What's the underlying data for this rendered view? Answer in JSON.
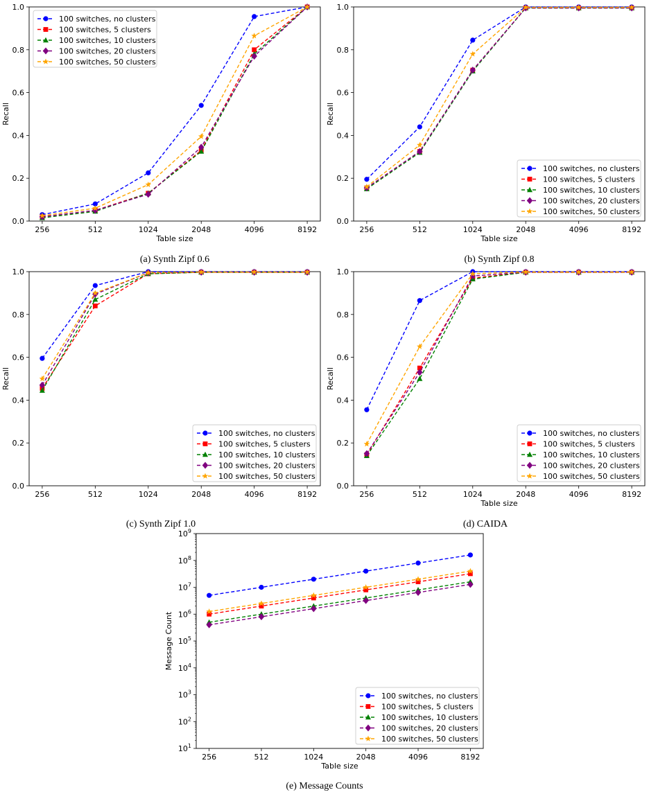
{
  "captions": [
    "(a) Synth Zipf 0.6",
    "(b) Synth Zipf 0.8",
    "(c) Synth Zipf 1.0",
    "(d) CAIDA",
    "(e) Message Counts"
  ],
  "series_styles": [
    {
      "name": "100 switches, no clusters",
      "color": "#0000ff",
      "marker": "circle"
    },
    {
      "name": "100 switches, 5 clusters",
      "color": "#ff0000",
      "marker": "square"
    },
    {
      "name": "100 switches, 10 clusters",
      "color": "#008000",
      "marker": "triangle"
    },
    {
      "name": "100 switches, 20 clusters",
      "color": "#800080",
      "marker": "diamond"
    },
    {
      "name": "100 switches, 50 clusters",
      "color": "#ffa500",
      "marker": "star"
    }
  ],
  "chart_data": [
    {
      "type": "line",
      "caption": "(a) Synth Zipf 0.6",
      "xlabel": "Table size",
      "ylabel": "Recall",
      "x": [
        "256",
        "512",
        "1024",
        "2048",
        "4096",
        "8192"
      ],
      "ylim": [
        0,
        1.0
      ],
      "yticks": [
        "0.0",
        "0.2",
        "0.4",
        "0.6",
        "0.8",
        "1.0"
      ],
      "yscale": "linear",
      "legend": "top-left",
      "series": [
        {
          "name": "100 switches, no clusters",
          "values": [
            0.03,
            0.08,
            0.225,
            0.54,
            0.955,
            1.0
          ]
        },
        {
          "name": "100 switches, 5 clusters",
          "values": [
            0.02,
            0.05,
            0.13,
            0.33,
            0.8,
            1.0
          ]
        },
        {
          "name": "100 switches, 10 clusters",
          "values": [
            0.015,
            0.045,
            0.13,
            0.325,
            0.78,
            1.0
          ]
        },
        {
          "name": "100 switches, 20 clusters",
          "values": [
            0.02,
            0.05,
            0.125,
            0.345,
            0.77,
            1.0
          ]
        },
        {
          "name": "100 switches, 50 clusters",
          "values": [
            0.025,
            0.06,
            0.17,
            0.395,
            0.865,
            1.0
          ]
        }
      ]
    },
    {
      "type": "line",
      "caption": "(b) Synth Zipf 0.8",
      "xlabel": "Table size",
      "ylabel": "Recall",
      "x": [
        "256",
        "512",
        "1024",
        "2048",
        "4096",
        "8192"
      ],
      "ylim": [
        0,
        1.0
      ],
      "yticks": [
        "0.0",
        "0.2",
        "0.4",
        "0.6",
        "0.8",
        "1.0"
      ],
      "yscale": "linear",
      "legend": "bottom-right",
      "series": [
        {
          "name": "100 switches, no clusters",
          "values": [
            0.195,
            0.44,
            0.845,
            1.0,
            1.0,
            1.0
          ]
        },
        {
          "name": "100 switches, 5 clusters",
          "values": [
            0.155,
            0.325,
            0.705,
            0.995,
            0.995,
            0.995
          ]
        },
        {
          "name": "100 switches, 10 clusters",
          "values": [
            0.15,
            0.32,
            0.7,
            0.995,
            0.995,
            0.995
          ]
        },
        {
          "name": "100 switches, 20 clusters",
          "values": [
            0.155,
            0.325,
            0.705,
            0.995,
            0.995,
            0.995
          ]
        },
        {
          "name": "100 switches, 50 clusters",
          "values": [
            0.16,
            0.355,
            0.78,
            0.998,
            0.998,
            0.998
          ]
        }
      ]
    },
    {
      "type": "line",
      "caption": "(c) Synth Zipf 1.0",
      "xlabel": "",
      "ylabel": "Recall",
      "x": [
        "256",
        "512",
        "1024",
        "2048",
        "4096",
        "8192"
      ],
      "ylim": [
        0,
        1.0
      ],
      "yticks": [
        "0.0",
        "0.2",
        "0.4",
        "0.6",
        "0.8",
        "1.0"
      ],
      "yscale": "linear",
      "legend": "bottom-right",
      "series": [
        {
          "name": "100 switches, no clusters",
          "values": [
            0.595,
            0.935,
            1.0,
            1.0,
            1.0,
            1.0
          ]
        },
        {
          "name": "100 switches, 5 clusters",
          "values": [
            0.455,
            0.84,
            0.99,
            0.997,
            0.997,
            0.997
          ]
        },
        {
          "name": "100 switches, 10 clusters",
          "values": [
            0.445,
            0.87,
            0.99,
            0.997,
            0.997,
            0.997
          ]
        },
        {
          "name": "100 switches, 20 clusters",
          "values": [
            0.47,
            0.895,
            0.995,
            0.997,
            0.997,
            0.997
          ]
        },
        {
          "name": "100 switches, 50 clusters",
          "values": [
            0.5,
            0.9,
            0.995,
            0.998,
            0.998,
            0.998
          ]
        }
      ]
    },
    {
      "type": "line",
      "caption": "(d) CAIDA",
      "xlabel": "Table size",
      "ylabel": "Recall",
      "x": [
        "256",
        "512",
        "1024",
        "2048",
        "4096",
        "8192"
      ],
      "ylim": [
        0,
        1.0
      ],
      "yticks": [
        "0.0",
        "0.2",
        "0.4",
        "0.6",
        "0.8",
        "1.0"
      ],
      "yscale": "linear",
      "legend": "bottom-right",
      "series": [
        {
          "name": "100 switches, no clusters",
          "values": [
            0.355,
            0.865,
            1.0,
            1.0,
            1.0,
            1.0
          ]
        },
        {
          "name": "100 switches, 5 clusters",
          "values": [
            0.145,
            0.55,
            0.97,
            0.997,
            0.997,
            0.997
          ]
        },
        {
          "name": "100 switches, 10 clusters",
          "values": [
            0.14,
            0.5,
            0.965,
            0.997,
            0.997,
            0.997
          ]
        },
        {
          "name": "100 switches, 20 clusters",
          "values": [
            0.15,
            0.53,
            0.98,
            0.997,
            0.997,
            0.997
          ]
        },
        {
          "name": "100 switches, 50 clusters",
          "values": [
            0.195,
            0.65,
            0.99,
            0.998,
            0.998,
            0.998
          ]
        }
      ]
    },
    {
      "type": "line",
      "caption": "(e) Message Counts",
      "xlabel": "Table size",
      "ylabel": "Message Count",
      "x": [
        "256",
        "512",
        "1024",
        "2048",
        "4096",
        "8192"
      ],
      "ylim": [
        10,
        1000000000
      ],
      "yscale": "log",
      "yticks_exp": [
        1,
        2,
        3,
        4,
        5,
        6,
        7,
        8,
        9
      ],
      "legend": "bottom-right",
      "series": [
        {
          "name": "100 switches, no clusters",
          "values": [
            5000000,
            10000000,
            20000000,
            40000000,
            80000000,
            160000000
          ]
        },
        {
          "name": "100 switches, 5 clusters",
          "values": [
            1000000,
            2000000,
            4000000,
            8000000,
            16000000,
            32000000
          ]
        },
        {
          "name": "100 switches, 10 clusters",
          "values": [
            500000,
            1000000,
            2000000,
            4000000,
            8000000,
            16000000
          ]
        },
        {
          "name": "100 switches, 20 clusters",
          "values": [
            400000,
            800000,
            1600000,
            3200000,
            6400000,
            12800000
          ]
        },
        {
          "name": "100 switches, 50 clusters",
          "values": [
            1250000,
            2500000,
            5000000,
            10000000,
            20000000,
            40000000
          ]
        }
      ]
    }
  ]
}
